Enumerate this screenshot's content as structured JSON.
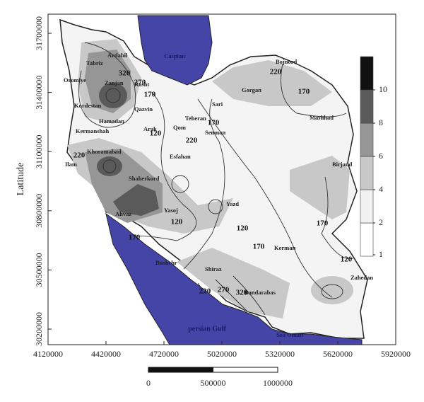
{
  "map": {
    "y_label": "Latitude",
    "xlim": [
      4120000,
      5920000
    ],
    "ylim": [
      30121000,
      31797000
    ],
    "xticks": [
      4120000,
      4420000,
      4720000,
      5020000,
      5320000,
      5620000,
      5920000
    ],
    "yticks": [
      30200000,
      30500000,
      30800000,
      31100000,
      31400000,
      31700000
    ],
    "legend": {
      "ticks": [
        1,
        2,
        4,
        6,
        8,
        10
      ],
      "colors": [
        "#ffffff",
        "#f0f0f0",
        "#c8c8c8",
        "#969696",
        "#5a5a5a",
        "#111111"
      ]
    },
    "scale_bar": {
      "ticks": [
        0,
        500000,
        1000000
      ]
    },
    "water": [
      "Caspian",
      "persian Gulf",
      "Sea Oman"
    ],
    "cities": [
      "Ardabil",
      "Tabriz",
      "Oromiye",
      "Zanjan",
      "Rasht",
      "Kordestan",
      "Qazvin",
      "Hamadan",
      "Sari",
      "Gorgan",
      "Bojnord",
      "Mashhad",
      "Teheran",
      "Qom",
      "Semnan",
      "Kermanshah",
      "Arak",
      "Khoramabad",
      "Ilam",
      "Esfahan",
      "Shaherkord",
      "Ahvaz",
      "Yasoj",
      "Yazd",
      "Birjand",
      "Kerman",
      "Zahedan",
      "Shiraz",
      "Bushehr",
      "Bandarabas"
    ],
    "contour_labels": [
      "320",
      "270",
      "170",
      "120",
      "220",
      "170",
      "220",
      "170",
      "220",
      "120",
      "170",
      "120",
      "170",
      "170",
      "120",
      "220",
      "270",
      "320"
    ]
  }
}
